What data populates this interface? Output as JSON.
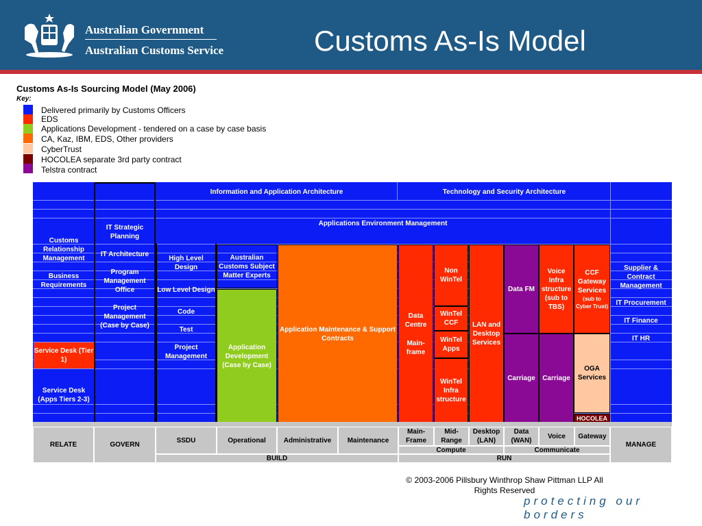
{
  "header": {
    "gov_line1": "Australian Government",
    "gov_line2": "Australian Customs Service",
    "title": "Customs As-Is Model"
  },
  "diagram": {
    "subtitle": "Customs As-Is Sourcing Model (May 2006)",
    "key_label": "Key:",
    "key": [
      {
        "color": "#0b1cf5",
        "label": "Delivered primarily by Customs Officers"
      },
      {
        "color": "#ff2a00",
        "label": "EDS"
      },
      {
        "color": "#8fcc1e",
        "label": " Applications Development - tendered on a case by case basis"
      },
      {
        "color": "#ff6a00",
        "label": "CA, Kaz, IBM, EDS, Other providers"
      },
      {
        "color": "#ffc8a0",
        "label": "CyberTrust"
      },
      {
        "color": "#7a0000",
        "label": "HOCOLEA  separate 3rd party contract"
      },
      {
        "color": "#8a0a96",
        "label": "Telstra contract"
      }
    ],
    "cells": {
      "info_arch": "Information and Application Architecture",
      "tech_arch": "Technology and Security Architecture",
      "app_env": "Applications Environment Management",
      "crm": "Customs Relationship Management",
      "business_req": "Business Requirements",
      "service_desk_1": "Service Desk (Tier 1)",
      "service_desk_2": "Service Desk (Apps Tiers 2-3)",
      "it_strategic": "IT Strategic Planning",
      "it_arch": "IT Architecture",
      "pmo": "Program Management Office",
      "project_mgmt_case": "Project Management (Case by Case)",
      "high_level": "High Level Design",
      "low_level": "Low Level Design",
      "code": "Code",
      "test": "Test",
      "project_mgmt": "Project Management",
      "sme": "Australian Customs Subject Matter Experts",
      "app_dev": "Application Development (Case by Case)",
      "app_maint": "Application Maintenance & Support Contracts",
      "data_centre": "Data Centre",
      "mainframe": "Main-frame",
      "non_wintel": "Non WinTel",
      "wintel_ccf": "WinTel CCF",
      "wintel_apps": "WinTel Apps",
      "wintel_infra": "WinTel Infra structure",
      "lan": "LAN and Desktop Services",
      "data_fm": "Data FM",
      "carriage1": "Carriage",
      "voice_infra": "Voice Infra structure (sub to TBS)",
      "carriage2": "Carriage",
      "ccf_gw": "CCF Gateway Services",
      "ccf_gw_sub": "(sub to Cyber Trust)",
      "oga": "OGA Services",
      "hocolea": "HOCOLEA",
      "supplier": "Supplier & Contract Management",
      "it_procurement": "IT Procurement",
      "it_finance": "IT Finance",
      "it_hr": "IT HR"
    },
    "bottom": {
      "relate": "RELATE",
      "govern": "GOVERN",
      "ssdu": "SSDU",
      "operational": "Operational",
      "administrative": "Administrative",
      "maintenance": "Maintenance",
      "mainframe": "Main-Frame",
      "midrange": "Mid-Range",
      "desktop": "Desktop (LAN)",
      "data_wan": "Data (WAN)",
      "voice": "Voice",
      "gateway": "Gateway",
      "manage": "MANAGE",
      "compute": "Compute",
      "communicate": "Communicate",
      "build": "BUILD",
      "run": "RUN"
    }
  },
  "footer": {
    "copyright": "© 2003-2006 Pillsbury Winthrop Shaw Pittman LLP All Rights Reserved",
    "tagline": "protecting our borders"
  }
}
